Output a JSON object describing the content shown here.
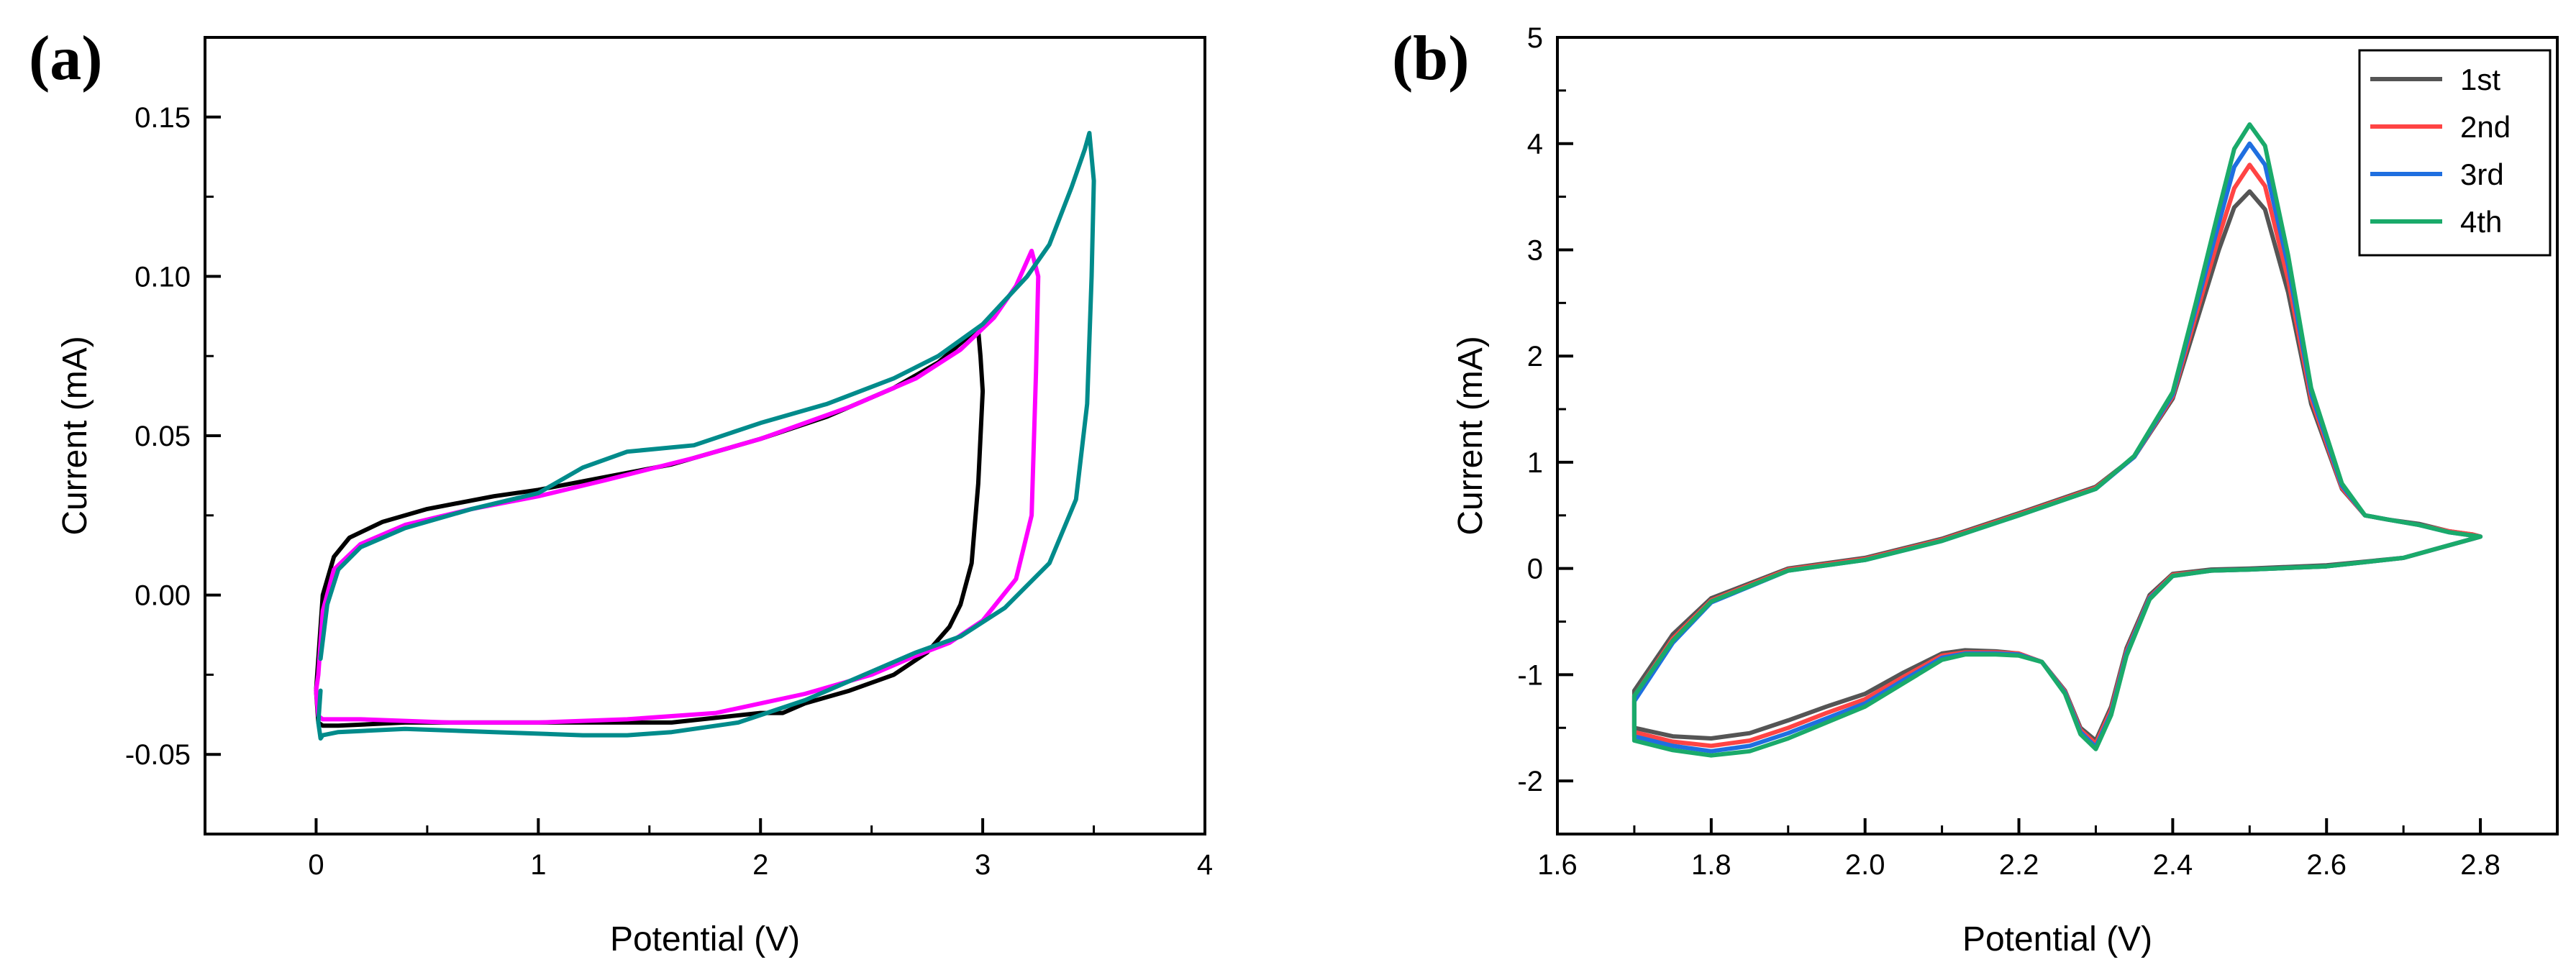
{
  "chart_data": [
    {
      "type": "line",
      "panel_label": "(a)",
      "xlabel": "Potential (V)",
      "ylabel": "Current (mA)",
      "xlim": [
        -0.5,
        4.0
      ],
      "ylim": [
        -0.075,
        0.175
      ],
      "xticks": [
        0,
        1,
        2,
        3,
        4
      ],
      "xtick_labels": [
        "0",
        "1",
        "2",
        "3",
        "4"
      ],
      "yticks": [
        -0.05,
        0.0,
        0.05,
        0.1,
        0.15
      ],
      "ytick_labels": [
        "-0.05",
        "0.00",
        "0.05",
        "0.10",
        "0.15"
      ],
      "grid": false,
      "series": [
        {
          "color": "#000000",
          "x": [
            0.01,
            0.03,
            0.08,
            0.15,
            0.3,
            0.5,
            0.8,
            1.0,
            1.3,
            1.6,
            2.0,
            2.3,
            2.6,
            2.8,
            2.95,
            2.98,
            2.99,
            3.0,
            2.98,
            2.95,
            2.9,
            2.85,
            2.75,
            2.6,
            2.4,
            2.2,
            2.1,
            2.0,
            1.6,
            1.2,
            0.8,
            0.4,
            0.1,
            0.03,
            0.01,
            0.0,
            0.01
          ],
          "y": [
            -0.02,
            0.0,
            0.012,
            0.018,
            0.023,
            0.027,
            0.031,
            0.033,
            0.037,
            0.041,
            0.049,
            0.056,
            0.065,
            0.073,
            0.082,
            0.083,
            0.075,
            0.064,
            0.035,
            0.01,
            -0.003,
            -0.01,
            -0.018,
            -0.025,
            -0.03,
            -0.034,
            -0.037,
            -0.037,
            -0.04,
            -0.04,
            -0.04,
            -0.04,
            -0.041,
            -0.041,
            -0.04,
            -0.03,
            -0.02
          ]
        },
        {
          "color": "#ff00ff",
          "x": [
            0.01,
            0.03,
            0.08,
            0.2,
            0.4,
            0.7,
            1.0,
            1.3,
            1.7,
            2.0,
            2.4,
            2.7,
            2.9,
            3.05,
            3.15,
            3.22,
            3.25,
            3.24,
            3.22,
            3.15,
            3.0,
            2.85,
            2.7,
            2.5,
            2.2,
            1.8,
            1.4,
            1.0,
            0.6,
            0.2,
            0.03,
            0.01,
            0.0,
            0.01
          ],
          "y": [
            -0.025,
            -0.005,
            0.008,
            0.016,
            0.022,
            0.027,
            0.031,
            0.036,
            0.043,
            0.049,
            0.059,
            0.068,
            0.077,
            0.087,
            0.097,
            0.108,
            0.1,
            0.07,
            0.025,
            0.005,
            -0.008,
            -0.015,
            -0.019,
            -0.025,
            -0.031,
            -0.037,
            -0.039,
            -0.04,
            -0.04,
            -0.039,
            -0.039,
            -0.038,
            -0.03,
            -0.025
          ]
        },
        {
          "color": "#008b8b",
          "x": [
            0.02,
            0.05,
            0.1,
            0.2,
            0.4,
            0.7,
            1.0,
            1.2,
            1.4,
            1.7,
            2.0,
            2.3,
            2.6,
            2.8,
            3.0,
            3.2,
            3.3,
            3.4,
            3.46,
            3.48,
            3.5,
            3.49,
            3.47,
            3.42,
            3.3,
            3.1,
            2.9,
            2.7,
            2.5,
            2.2,
            1.9,
            1.6,
            1.4,
            1.2,
            0.8,
            0.4,
            0.1,
            0.03,
            0.02,
            0.01,
            0.02
          ],
          "y": [
            -0.02,
            -0.003,
            0.008,
            0.015,
            0.021,
            0.027,
            0.032,
            0.04,
            0.045,
            0.047,
            0.054,
            0.06,
            0.068,
            0.075,
            0.085,
            0.1,
            0.11,
            0.128,
            0.14,
            0.145,
            0.13,
            0.1,
            0.06,
            0.03,
            0.01,
            -0.004,
            -0.013,
            -0.018,
            -0.024,
            -0.033,
            -0.04,
            -0.043,
            -0.044,
            -0.044,
            -0.043,
            -0.042,
            -0.043,
            -0.044,
            -0.045,
            -0.04,
            -0.03
          ]
        }
      ]
    },
    {
      "type": "line",
      "panel_label": "(b)",
      "xlabel": "Potential (V)",
      "ylabel": "Current (mA)",
      "xlim": [
        1.6,
        2.9
      ],
      "ylim": [
        -2.5,
        5.0
      ],
      "xticks": [
        1.6,
        1.8,
        2.0,
        2.2,
        2.4,
        2.6,
        2.8
      ],
      "xtick_labels": [
        "1.6",
        "1.8",
        "2.0",
        "2.2",
        "2.4",
        "2.6",
        "2.8"
      ],
      "yticks": [
        -2,
        -1,
        0,
        1,
        2,
        3,
        4,
        5
      ],
      "ytick_labels": [
        "-2",
        "-1",
        "0",
        "1",
        "2",
        "3",
        "4",
        "5"
      ],
      "grid": false,
      "legend_position": "top-right",
      "series": [
        {
          "name": "1st",
          "color": "#555555",
          "x": [
            1.7,
            1.75,
            1.8,
            1.9,
            2.0,
            2.1,
            2.2,
            2.3,
            2.35,
            2.4,
            2.43,
            2.46,
            2.48,
            2.5,
            2.52,
            2.55,
            2.58,
            2.62,
            2.65,
            2.68,
            2.72,
            2.76,
            2.79,
            2.8,
            2.79,
            2.7,
            2.6,
            2.5,
            2.45,
            2.4,
            2.37,
            2.34,
            2.32,
            2.3,
            2.28,
            2.26,
            2.23,
            2.2,
            2.17,
            2.13,
            2.1,
            2.05,
            2.0,
            1.95,
            1.9,
            1.85,
            1.8,
            1.75,
            1.7,
            1.7
          ],
          "y": [
            -1.15,
            -0.62,
            -0.28,
            0.0,
            0.1,
            0.28,
            0.52,
            0.77,
            1.05,
            1.6,
            2.3,
            3.0,
            3.4,
            3.55,
            3.38,
            2.6,
            1.55,
            0.75,
            0.5,
            0.46,
            0.42,
            0.35,
            0.32,
            0.3,
            0.28,
            0.1,
            0.03,
            0.0,
            -0.01,
            -0.05,
            -0.25,
            -0.75,
            -1.3,
            -1.62,
            -1.5,
            -1.15,
            -0.88,
            -0.8,
            -0.78,
            -0.77,
            -0.8,
            -0.98,
            -1.18,
            -1.3,
            -1.43,
            -1.55,
            -1.6,
            -1.58,
            -1.5,
            -1.15
          ]
        },
        {
          "name": "2nd",
          "color": "#ff4444",
          "x": [
            1.7,
            1.75,
            1.8,
            1.9,
            2.0,
            2.1,
            2.2,
            2.3,
            2.35,
            2.4,
            2.43,
            2.46,
            2.48,
            2.5,
            2.52,
            2.55,
            2.58,
            2.62,
            2.65,
            2.68,
            2.72,
            2.76,
            2.79,
            2.8,
            2.79,
            2.7,
            2.6,
            2.5,
            2.45,
            2.4,
            2.37,
            2.34,
            2.32,
            2.3,
            2.28,
            2.26,
            2.23,
            2.2,
            2.17,
            2.13,
            2.1,
            2.05,
            2.0,
            1.95,
            1.9,
            1.85,
            1.8,
            1.75,
            1.7,
            1.7
          ],
          "y": [
            -1.2,
            -0.66,
            -0.3,
            -0.01,
            0.09,
            0.27,
            0.51,
            0.76,
            1.05,
            1.62,
            2.38,
            3.12,
            3.58,
            3.8,
            3.6,
            2.72,
            1.6,
            0.76,
            0.5,
            0.46,
            0.41,
            0.35,
            0.32,
            0.3,
            0.28,
            0.1,
            0.02,
            -0.01,
            -0.02,
            -0.06,
            -0.27,
            -0.78,
            -1.33,
            -1.65,
            -1.52,
            -1.16,
            -0.88,
            -0.8,
            -0.79,
            -0.79,
            -0.82,
            -1.02,
            -1.23,
            -1.36,
            -1.5,
            -1.62,
            -1.67,
            -1.63,
            -1.54,
            -1.2
          ]
        },
        {
          "name": "3rd",
          "color": "#1f6fe0",
          "x": [
            1.7,
            1.75,
            1.8,
            1.9,
            2.0,
            2.1,
            2.2,
            2.3,
            2.35,
            2.4,
            2.43,
            2.46,
            2.48,
            2.5,
            2.52,
            2.55,
            2.58,
            2.62,
            2.65,
            2.68,
            2.72,
            2.76,
            2.79,
            2.8,
            2.79,
            2.7,
            2.6,
            2.5,
            2.45,
            2.4,
            2.37,
            2.34,
            2.32,
            2.3,
            2.28,
            2.26,
            2.23,
            2.2,
            2.17,
            2.13,
            2.1,
            2.05,
            2.0,
            1.95,
            1.9,
            1.85,
            1.8,
            1.75,
            1.7,
            1.7
          ],
          "y": [
            -1.25,
            -0.7,
            -0.32,
            -0.02,
            0.08,
            0.26,
            0.5,
            0.75,
            1.05,
            1.64,
            2.45,
            3.25,
            3.78,
            4.0,
            3.8,
            2.85,
            1.65,
            0.78,
            0.5,
            0.46,
            0.41,
            0.34,
            0.31,
            0.3,
            0.28,
            0.1,
            0.02,
            -0.01,
            -0.02,
            -0.07,
            -0.28,
            -0.8,
            -1.36,
            -1.68,
            -1.54,
            -1.17,
            -0.88,
            -0.81,
            -0.8,
            -0.8,
            -0.84,
            -1.05,
            -1.27,
            -1.41,
            -1.55,
            -1.67,
            -1.72,
            -1.67,
            -1.58,
            -1.25
          ]
        },
        {
          "name": "4th",
          "color": "#1aaa6a",
          "x": [
            1.7,
            1.75,
            1.8,
            1.9,
            2.0,
            2.1,
            2.2,
            2.3,
            2.35,
            2.4,
            2.43,
            2.46,
            2.48,
            2.5,
            2.52,
            2.55,
            2.58,
            2.62,
            2.65,
            2.68,
            2.72,
            2.76,
            2.79,
            2.8,
            2.79,
            2.7,
            2.6,
            2.5,
            2.45,
            2.4,
            2.37,
            2.34,
            2.32,
            2.3,
            2.28,
            2.26,
            2.23,
            2.2,
            2.17,
            2.13,
            2.1,
            2.05,
            2.0,
            1.95,
            1.9,
            1.85,
            1.8,
            1.75,
            1.7,
            1.7
          ],
          "y": [
            -1.2,
            -0.68,
            -0.31,
            -0.02,
            0.08,
            0.26,
            0.5,
            0.75,
            1.06,
            1.66,
            2.5,
            3.38,
            3.95,
            4.18,
            3.98,
            2.95,
            1.7,
            0.8,
            0.5,
            0.46,
            0.41,
            0.34,
            0.31,
            0.3,
            0.28,
            0.1,
            0.02,
            -0.01,
            -0.02,
            -0.07,
            -0.29,
            -0.82,
            -1.38,
            -1.7,
            -1.56,
            -1.18,
            -0.88,
            -0.82,
            -0.81,
            -0.81,
            -0.86,
            -1.08,
            -1.3,
            -1.45,
            -1.6,
            -1.72,
            -1.76,
            -1.71,
            -1.62,
            -1.2
          ]
        }
      ]
    }
  ]
}
